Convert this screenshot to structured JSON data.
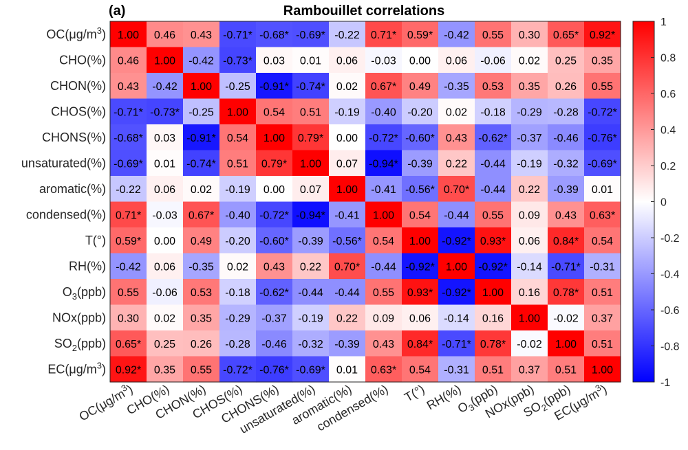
{
  "chart_data": {
    "type": "heatmap",
    "panel_label": "(a)",
    "title": "Rambouillet correlations",
    "variables": [
      {
        "base": "OC(μg/m",
        "sup": "3",
        "tail": ")"
      },
      {
        "base": "CHO(%)"
      },
      {
        "base": "CHON(%)"
      },
      {
        "base": "CHOS(%)"
      },
      {
        "base": "CHONS(%)"
      },
      {
        "base": "unsaturated(%)"
      },
      {
        "base": "aromatic(%)"
      },
      {
        "base": "condensed(%)"
      },
      {
        "base": "T(°)"
      },
      {
        "base": "RH(%)"
      },
      {
        "base": "O",
        "sub": "3",
        "tail": "(ppb)"
      },
      {
        "base": "NOx(ppb)"
      },
      {
        "base": "SO",
        "sub": "2",
        "tail": "(ppb)"
      },
      {
        "base": "EC(μg/m",
        "sup": "3",
        "tail": ")"
      }
    ],
    "values": [
      [
        1.0,
        0.46,
        0.43,
        -0.71,
        -0.68,
        -0.69,
        -0.22,
        0.71,
        0.59,
        -0.42,
        0.55,
        0.3,
        0.65,
        0.92
      ],
      [
        0.46,
        1.0,
        -0.42,
        -0.73,
        0.03,
        0.01,
        0.06,
        -0.03,
        0.0,
        0.06,
        -0.06,
        0.02,
        0.25,
        0.35
      ],
      [
        0.43,
        -0.42,
        1.0,
        -0.25,
        -0.91,
        -0.74,
        0.02,
        0.67,
        0.49,
        -0.35,
        0.53,
        0.35,
        0.26,
        0.55
      ],
      [
        -0.71,
        -0.73,
        -0.25,
        1.0,
        0.54,
        0.51,
        -0.19,
        -0.4,
        -0.2,
        0.02,
        -0.18,
        -0.29,
        -0.28,
        -0.72
      ],
      [
        -0.68,
        0.03,
        -0.91,
        0.54,
        1.0,
        0.79,
        0.0,
        -0.72,
        -0.6,
        0.43,
        -0.62,
        -0.37,
        -0.46,
        -0.76
      ],
      [
        -0.69,
        0.01,
        -0.74,
        0.51,
        0.79,
        1.0,
        0.07,
        -0.94,
        -0.39,
        0.22,
        -0.44,
        -0.19,
        -0.32,
        -0.69
      ],
      [
        -0.22,
        0.06,
        0.02,
        -0.19,
        0.0,
        0.07,
        1.0,
        -0.41,
        -0.56,
        0.7,
        -0.44,
        0.22,
        -0.39,
        0.01
      ],
      [
        0.71,
        -0.03,
        0.67,
        -0.4,
        -0.72,
        -0.94,
        -0.41,
        1.0,
        0.54,
        -0.44,
        0.55,
        0.09,
        0.43,
        0.63
      ],
      [
        0.59,
        0.0,
        0.49,
        -0.2,
        -0.6,
        -0.39,
        -0.56,
        0.54,
        1.0,
        -0.92,
        0.93,
        0.06,
        0.84,
        0.54
      ],
      [
        -0.42,
        0.06,
        -0.35,
        0.02,
        0.43,
        0.22,
        0.7,
        -0.44,
        -0.92,
        1.0,
        -0.92,
        -0.14,
        -0.71,
        -0.31
      ],
      [
        0.55,
        -0.06,
        0.53,
        -0.18,
        -0.62,
        -0.44,
        -0.44,
        0.55,
        0.93,
        -0.92,
        1.0,
        0.16,
        0.78,
        0.51
      ],
      [
        0.3,
        0.02,
        0.35,
        -0.29,
        -0.37,
        -0.19,
        0.22,
        0.09,
        0.06,
        -0.14,
        0.16,
        1.0,
        -0.02,
        0.37
      ],
      [
        0.65,
        0.25,
        0.26,
        -0.28,
        -0.46,
        -0.32,
        -0.39,
        0.43,
        0.84,
        -0.71,
        0.78,
        -0.02,
        1.0,
        0.51
      ],
      [
        0.92,
        0.35,
        0.55,
        -0.72,
        -0.76,
        -0.69,
        0.01,
        0.63,
        0.54,
        -0.31,
        0.51,
        0.37,
        0.51,
        1.0
      ]
    ],
    "significant": [
      [
        0,
        0,
        0,
        1,
        1,
        1,
        0,
        1,
        1,
        0,
        0,
        0,
        1,
        1
      ],
      [
        0,
        0,
        0,
        1,
        0,
        0,
        0,
        0,
        0,
        0,
        0,
        0,
        0,
        0
      ],
      [
        0,
        0,
        0,
        0,
        1,
        1,
        0,
        1,
        0,
        0,
        0,
        0,
        0,
        0
      ],
      [
        1,
        1,
        0,
        0,
        0,
        0,
        0,
        0,
        0,
        0,
        0,
        0,
        0,
        1
      ],
      [
        1,
        0,
        1,
        0,
        0,
        1,
        0,
        1,
        1,
        0,
        1,
        0,
        0,
        1
      ],
      [
        1,
        0,
        1,
        0,
        1,
        0,
        0,
        1,
        0,
        0,
        0,
        0,
        0,
        1
      ],
      [
        0,
        0,
        0,
        0,
        0,
        0,
        0,
        0,
        1,
        1,
        0,
        0,
        0,
        0
      ],
      [
        1,
        0,
        1,
        0,
        1,
        1,
        0,
        0,
        0,
        0,
        0,
        0,
        0,
        1
      ],
      [
        1,
        0,
        0,
        0,
        1,
        0,
        1,
        0,
        0,
        1,
        1,
        0,
        1,
        0
      ],
      [
        0,
        0,
        0,
        0,
        0,
        0,
        1,
        0,
        1,
        0,
        1,
        0,
        1,
        0
      ],
      [
        0,
        0,
        0,
        0,
        1,
        0,
        0,
        0,
        1,
        1,
        0,
        0,
        1,
        0
      ],
      [
        0,
        0,
        0,
        0,
        0,
        0,
        0,
        0,
        0,
        0,
        0,
        0,
        0,
        0
      ],
      [
        1,
        0,
        0,
        0,
        0,
        0,
        0,
        0,
        1,
        1,
        1,
        0,
        0,
        0
      ],
      [
        1,
        0,
        0,
        1,
        1,
        1,
        0,
        1,
        0,
        0,
        0,
        0,
        0,
        0
      ]
    ],
    "significance_marker": "*",
    "colorbar": {
      "range": [
        -1,
        1
      ],
      "ticks": [
        "1",
        "0.8",
        "0.6",
        "0.4",
        "0.2",
        "0",
        "-0.2",
        "-0.4",
        "-0.6",
        "-0.8",
        "-1"
      ],
      "tick_values": [
        1,
        0.8,
        0.6,
        0.4,
        0.2,
        0,
        -0.2,
        -0.4,
        -0.6,
        -0.8,
        -1
      ],
      "low_color": "#0000ff",
      "mid_color": "#ffffff",
      "high_color": "#ff0000"
    },
    "grid": false,
    "legend": "right colorbar"
  }
}
